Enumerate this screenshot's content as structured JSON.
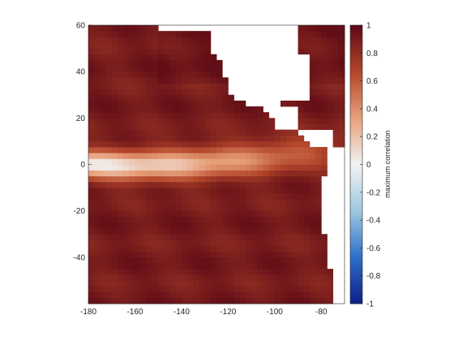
{
  "chart_data": {
    "type": "heatmap",
    "title": "",
    "xlabel": "",
    "ylabel": "",
    "xlim": [
      -180,
      -70
    ],
    "ylim": [
      -60,
      60
    ],
    "xticks": [
      -180,
      -160,
      -140,
      -120,
      -100,
      -80
    ],
    "yticks": [
      -40,
      -20,
      0,
      20,
      40,
      60
    ],
    "xtick_labels": [
      "-180",
      "-160",
      "-140",
      "-120",
      "-100",
      "-80"
    ],
    "ytick_labels": [
      "-40",
      "-20",
      "0",
      "20",
      "40",
      "60"
    ],
    "grid": false,
    "colorbar": {
      "label": "maximum correlation",
      "range": [
        -1,
        1
      ],
      "ticks": [
        1,
        0.8,
        0.6,
        0.4,
        0.2,
        0,
        -0.2,
        -0.4,
        -0.6,
        -0.8,
        -1
      ],
      "tick_labels": [
        "1",
        "0.8",
        "0.6",
        "0.4",
        "0.2",
        "0",
        "-0.2",
        "-0.4",
        "-0.6",
        "-0.8",
        "-1"
      ],
      "colors": [
        "#0d1f8a",
        "#2f6fc7",
        "#9ec9e0",
        "#f2f2f2",
        "#e8a07a",
        "#b3452a",
        "#5c0a16"
      ]
    },
    "field_summary": {
      "background_value": 0.9,
      "low_correlation_band": {
        "center_lat": 0,
        "west_value": 0.05,
        "east_value": 0.75
      },
      "land_color": "#ffffff"
    }
  }
}
